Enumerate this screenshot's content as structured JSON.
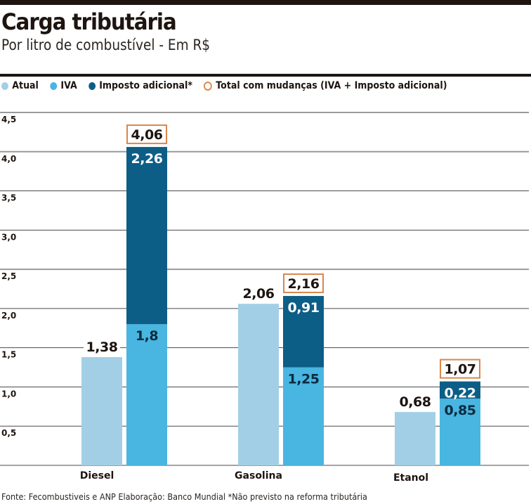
{
  "header": {
    "title": "Carga tributária",
    "subtitle": "Por litro de combustível - Em R$"
  },
  "legend": [
    {
      "label": "Atual",
      "color": "#a2cfe5",
      "shape": "dot"
    },
    {
      "label": "IVA",
      "color": "#48b6e0",
      "shape": "dot"
    },
    {
      "label": "Imposto adicional*",
      "color": "#0c5e86",
      "shape": "dot"
    },
    {
      "label": "Total com mudanças (IVA + Imposto adicional)",
      "color": "#d9874a",
      "shape": "ring"
    }
  ],
  "footer": {
    "source": "Fonte: Fecombustiveis e ANP Elaboração: Banco Mundial *Não previsto na reforma tributária"
  },
  "chart_data": {
    "type": "bar",
    "stacked": "second bar per group stacked (IVA + Imposto adicional)",
    "title": "Carga tributária",
    "subtitle": "Por litro de combustível - Em R$",
    "xlabel": "",
    "ylabel": "",
    "ylim": [
      0,
      4.5
    ],
    "yticks": [
      0.5,
      1.0,
      1.5,
      2.0,
      2.5,
      3.0,
      3.5,
      4.0,
      4.5
    ],
    "ytick_labels": [
      "0,5",
      "1,0",
      "1,5",
      "2,0",
      "2,5",
      "3,0",
      "3,5",
      "4,0",
      "4,5"
    ],
    "grid": true,
    "legend_position": "top",
    "categories": [
      "Diesel",
      "Gasolina",
      "Etanol"
    ],
    "series": [
      {
        "name": "Atual",
        "color": "#a2cfe5",
        "values": [
          1.38,
          2.06,
          0.68
        ],
        "labels": [
          "1,38",
          "2,06",
          "0,68"
        ]
      },
      {
        "name": "IVA",
        "color": "#48b6e0",
        "values": [
          1.8,
          1.25,
          0.85
        ],
        "labels": [
          "1,8",
          "1,25",
          "0,85"
        ]
      },
      {
        "name": "Imposto adicional*",
        "color": "#0c5e86",
        "values": [
          2.26,
          0.91,
          0.22
        ],
        "labels": [
          "2,26",
          "0,91",
          "0,22"
        ]
      },
      {
        "name": "Total com mudanças (IVA + Imposto adicional)",
        "color": "#d9874a",
        "values": [
          4.06,
          2.16,
          1.07
        ],
        "labels": [
          "4,06",
          "2,16",
          "1,07"
        ]
      }
    ]
  }
}
